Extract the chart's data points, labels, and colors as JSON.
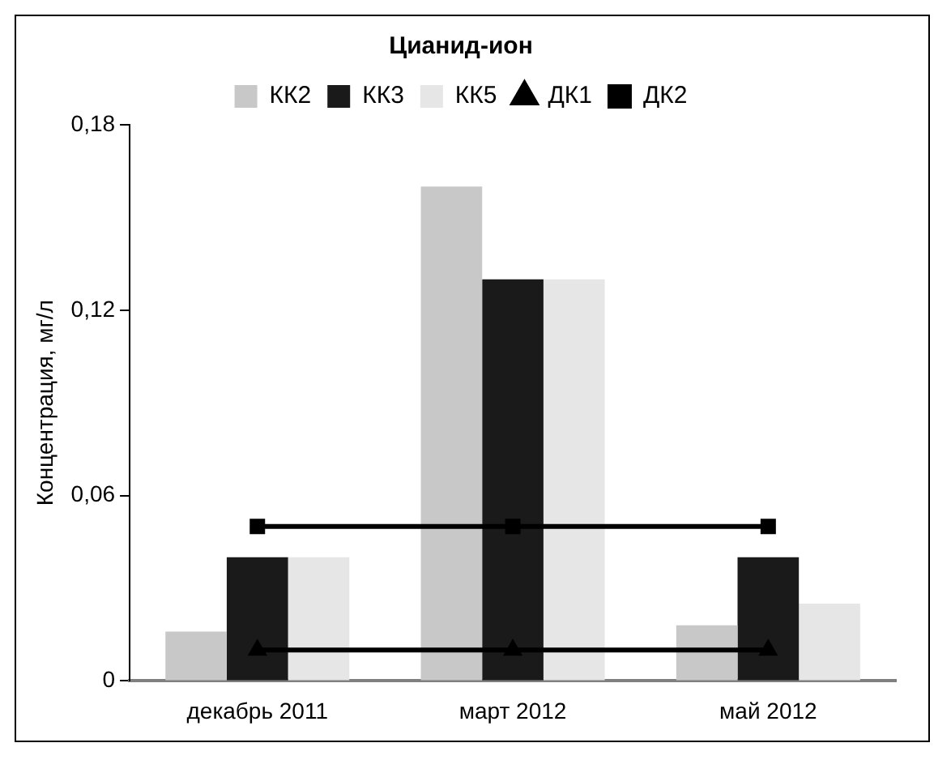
{
  "chart_data": {
    "type": "bar",
    "title": "Цианид-ион",
    "ylabel": "Концентрация, мг/л",
    "categories": [
      "декабрь 2011",
      "март 2012",
      "май 2012"
    ],
    "series": [
      {
        "name": "КК2",
        "color": "#c8c8c8",
        "values": [
          0.016,
          0.16,
          0.018
        ]
      },
      {
        "name": "КК3",
        "color": "#1a1a1a",
        "values": [
          0.04,
          0.13,
          0.04
        ]
      },
      {
        "name": "КК5",
        "color": "#e6e6e6",
        "values": [
          0.04,
          0.13,
          0.025
        ]
      },
      {
        "name": "ДК1",
        "type": "line",
        "color": "#000000",
        "marker": "triangle",
        "values": [
          0.01,
          0.01,
          0.01
        ]
      },
      {
        "name": "ДК2",
        "type": "line",
        "color": "#000000",
        "marker": "square",
        "values": [
          0.05,
          0.05,
          0.05
        ]
      }
    ],
    "ylim": [
      0,
      0.18
    ],
    "yticks": [
      {
        "value": 0,
        "label": "0"
      },
      {
        "value": 0.06,
        "label": "0,06"
      },
      {
        "value": 0.12,
        "label": "0,12"
      },
      {
        "value": 0.18,
        "label": "0,18"
      }
    ],
    "grid": false,
    "legend": "top"
  }
}
